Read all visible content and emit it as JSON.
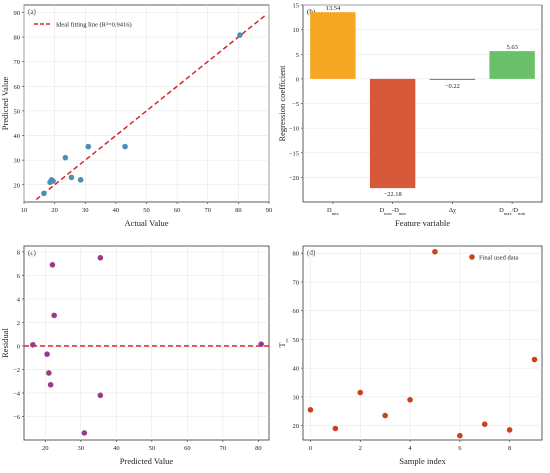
{
  "chart_data": [
    {
      "panel_label": "(a)",
      "type": "scatter",
      "xlabel": "Actual Value",
      "ylabel": "Predicted Value",
      "xlim": [
        10,
        90
      ],
      "ylim": [
        13,
        93
      ],
      "xticks": [
        10,
        20,
        30,
        40,
        50,
        60,
        70,
        80,
        90
      ],
      "yticks": [
        20,
        30,
        40,
        50,
        60,
        70,
        80,
        90
      ],
      "grid": true,
      "legend": "top-left",
      "series": [
        {
          "name": "Ideal fitting line (R²=0.9416)",
          "kind": "dashed-line",
          "color": "#d62728",
          "x": [
            14,
            89
          ],
          "y": [
            14,
            89
          ]
        },
        {
          "kind": "points",
          "color": "#4a90b5",
          "x": [
            16.5,
            18.5,
            19.0,
            19.5,
            23.5,
            25.5,
            28.5,
            31.0,
            43.0,
            80.5
          ],
          "y": [
            16.5,
            21.0,
            22.0,
            21.5,
            31.0,
            23.0,
            22.0,
            35.5,
            35.5,
            80.8
          ]
        }
      ]
    },
    {
      "panel_label": "(b)",
      "type": "bar",
      "xlabel": "Feature variable",
      "ylabel": "Regression coefficient",
      "categories": [
        "D_mix",
        "D_max-D_min",
        "Δχ",
        "D_max/D_min"
      ],
      "values": [
        13.54,
        -22.18,
        -0.22,
        5.63
      ],
      "value_labels": [
        "13.54",
        "−22.18",
        "−0.22",
        "5.63"
      ],
      "colors": [
        "#f5a623",
        "#d8583a",
        "#4a90b5",
        "#6abf69"
      ],
      "ylim": [
        -25,
        15
      ],
      "yticks": [
        -20,
        -15,
        -10,
        -5,
        0,
        5,
        10,
        15
      ],
      "grid": true
    },
    {
      "panel_label": "(c)",
      "type": "scatter",
      "xlabel": "Predicted Value",
      "ylabel": "Residual",
      "xlim": [
        14,
        83
      ],
      "ylim": [
        -8,
        8.5
      ],
      "xticks": [
        20,
        30,
        40,
        50,
        60,
        70,
        80
      ],
      "yticks": [
        -6,
        -4,
        -2,
        0,
        2,
        4,
        6,
        8
      ],
      "grid": true,
      "series": [
        {
          "kind": "hline",
          "color": "#d62728",
          "y": 0
        },
        {
          "kind": "points",
          "color": "#9b3a8c",
          "x": [
            16.5,
            20.5,
            21.0,
            21.5,
            22.0,
            22.5,
            31.0,
            35.5,
            35.5,
            80.8
          ],
          "y": [
            0.1,
            -0.7,
            -2.3,
            -3.3,
            6.9,
            2.6,
            -7.4,
            -4.2,
            7.5,
            0.15
          ]
        }
      ]
    },
    {
      "panel_label": "(d)",
      "type": "scatter",
      "xlabel": "Sample index",
      "ylabel": "T_cc",
      "xlim": [
        -0.3,
        9.3
      ],
      "ylim": [
        15,
        82.5
      ],
      "xticks": [
        0,
        2,
        4,
        6,
        8
      ],
      "yticks": [
        20,
        30,
        40,
        50,
        60,
        70,
        80
      ],
      "grid": true,
      "legend": "top-right",
      "series": [
        {
          "name": "Final used data",
          "kind": "points",
          "color": "#c8421d",
          "x": [
            0,
            1,
            2,
            3,
            4,
            5,
            6,
            7,
            8,
            9
          ],
          "y": [
            25.5,
            19.0,
            31.5,
            23.5,
            29.0,
            80.5,
            16.5,
            20.5,
            18.5,
            43.0
          ]
        }
      ]
    }
  ]
}
